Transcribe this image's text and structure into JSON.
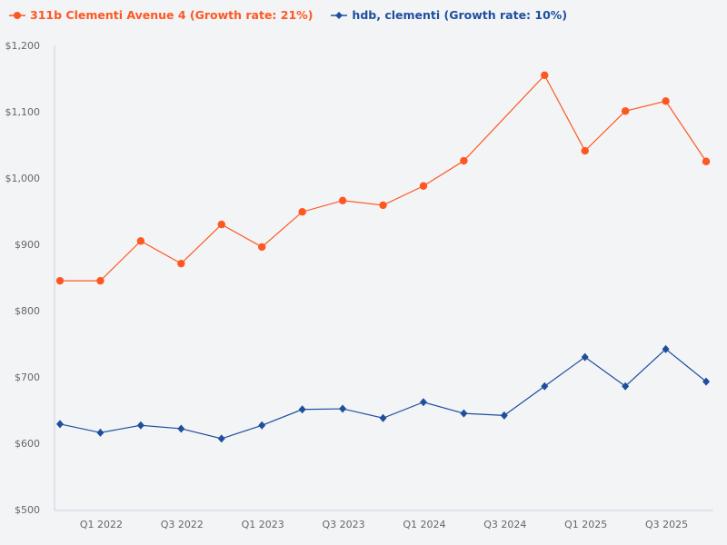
{
  "chart_data": {
    "type": "line",
    "categories": [
      "Q4 2021",
      "Q1 2022",
      "Q2 2022",
      "Q3 2022",
      "Q4 2022",
      "Q1 2023",
      "Q2 2023",
      "Q3 2023",
      "Q4 2023",
      "Q1 2024",
      "Q2 2024",
      "Q3 2024",
      "Q4 2024",
      "Q1 2025",
      "Q2 2025",
      "Q3 2025",
      "Q4 2025"
    ],
    "x_tick_labels": [
      "Q1 2022",
      "Q3 2022",
      "Q1 2023",
      "Q3 2023",
      "Q1 2024",
      "Q3 2024",
      "Q1 2025",
      "Q3 2025"
    ],
    "y_tick_labels": [
      "$500",
      "$600",
      "$700",
      "$800",
      "$900",
      "$1,000",
      "$1,100",
      "$1,200"
    ],
    "ylim": [
      500,
      1200
    ],
    "grid": false,
    "legend_position": "top-left",
    "series": [
      {
        "name": "311b Clementi Avenue 4 (Growth rate: 21%)",
        "color": "#ff5722",
        "marker": "circle",
        "values": [
          845,
          845,
          905,
          871,
          930,
          896,
          949,
          966,
          959,
          988,
          1026,
          null,
          1155,
          1041,
          1101,
          1116,
          1025
        ]
      },
      {
        "name": "hdb, clementi (Growth rate: 10%)",
        "color": "#1f4e9e",
        "marker": "diamond",
        "values": [
          629,
          616,
          627,
          622,
          607,
          627,
          651,
          652,
          638,
          662,
          645,
          642,
          686,
          730,
          686,
          742,
          693
        ]
      }
    ]
  }
}
